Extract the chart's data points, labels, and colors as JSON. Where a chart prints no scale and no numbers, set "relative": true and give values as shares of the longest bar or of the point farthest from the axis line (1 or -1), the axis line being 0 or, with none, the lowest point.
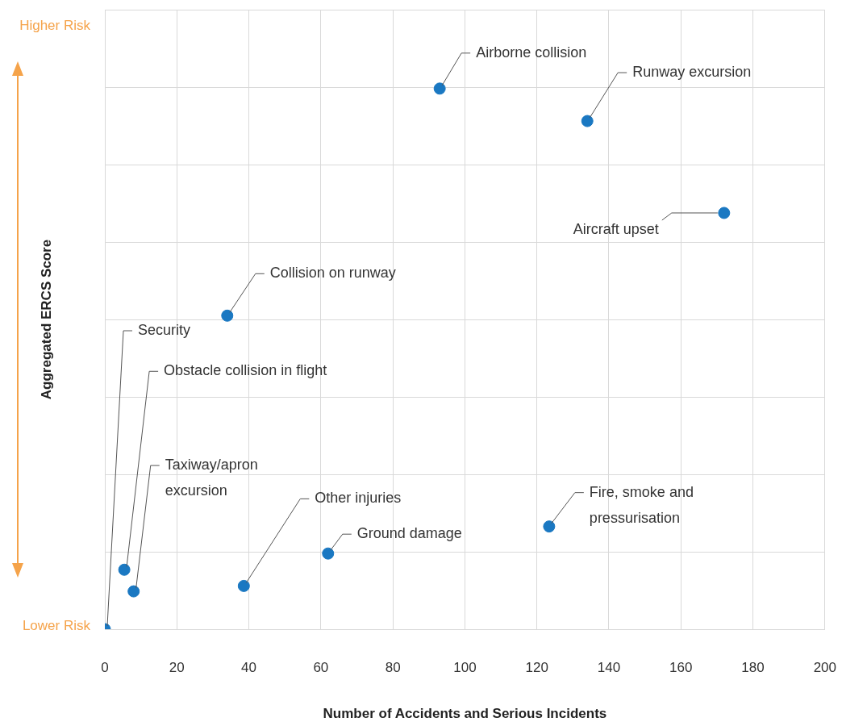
{
  "chart_data": {
    "type": "scatter",
    "xlabel": "Number of Accidents and Serious Incidents",
    "ylabel": "Aggregated ERCS Score",
    "series": [
      {
        "color": "#1a78c2",
        "x": [
          93,
          134,
          172,
          34,
          0,
          5.4,
          8,
          38.6,
          62,
          123.4
        ],
        "values": [
          1,
          0.94,
          0.77,
          0.58,
          0,
          0.11,
          0.07,
          0.08,
          0.14,
          0.19
        ]
      }
    ],
    "relative": true,
    "xlim": [
      0,
      200
    ],
    "xticks": [
      0,
      20,
      40,
      60,
      80,
      100,
      120,
      140,
      160,
      180,
      200
    ],
    "grid": true,
    "legend": false,
    "marker": "circle",
    "annotations": [
      "Higher Risk",
      "Lower Risk",
      {
        "text": "Airborne collision",
        "x": 93,
        "y": 1
      },
      {
        "text": "Runway excursion",
        "x": 134,
        "y": 0.94
      },
      {
        "text": "Aircraft upset",
        "x": 172,
        "y": 0.77
      },
      {
        "text": "Collision on runway",
        "x": 34,
        "y": 0.58
      },
      {
        "text": "Security",
        "x": 0,
        "y": 0
      },
      {
        "text": "Obstacle collision in flight",
        "x": 5.4,
        "y": 0.11
      },
      {
        "text": "Taxiway/apron excursion",
        "x": 8,
        "y": 0.07
      },
      {
        "text": "Other injuries",
        "x": 38.6,
        "y": 0.08
      },
      {
        "text": "Ground damage",
        "x": 62,
        "y": 0.14
      },
      {
        "text": "Fire, smoke and pressurisation",
        "x": 123.4,
        "y": 0.19
      }
    ]
  }
}
